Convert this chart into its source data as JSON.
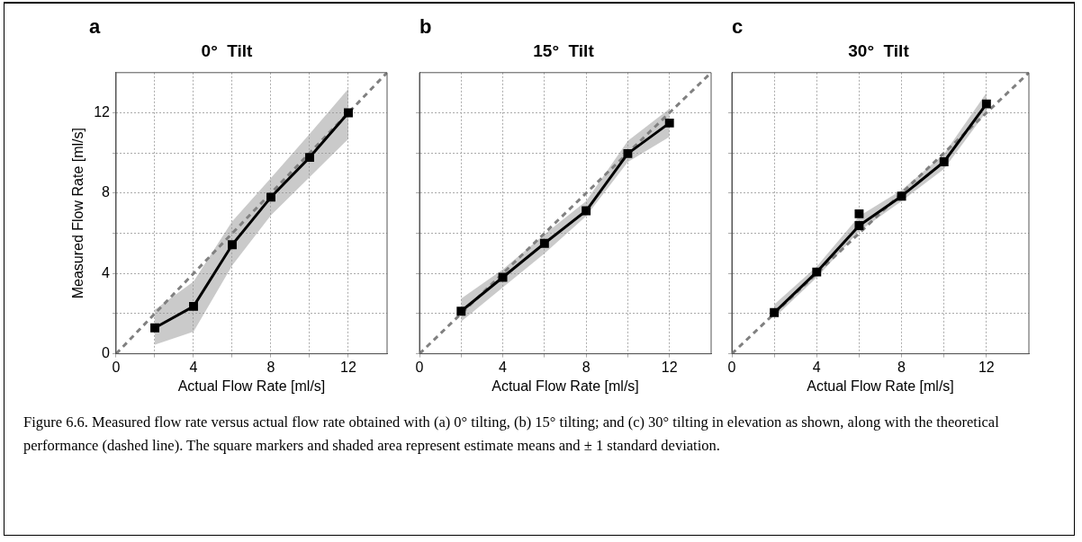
{
  "chart_data": [
    {
      "type": "line",
      "title": "0°  Tilt",
      "xlabel": "Actual Flow Rate [ml/s]",
      "ylabel": "Measured Flow Rate [ml/s]",
      "annotations": [
        "a",
        "Figure 6.6. Measured flow rate versus actual flow rate obtained with (a) 0° tilting, (b) 15° tilting; and (c) 30° tilting in elevation as shown, along with the theoretical performance (dashed line). The square markers and shaded area represent estimate means and ± 1 standard deviation."
      ],
      "xlim": [
        0,
        14
      ],
      "ylim": [
        0,
        14
      ],
      "xticks": [
        0,
        {
          "value": 2,
          "label": null
        },
        4,
        {
          "value": 6,
          "label": null
        },
        8,
        {
          "value": 10,
          "label": null
        },
        12
      ],
      "yticks": [
        0,
        {
          "value": 2,
          "label": null
        },
        4,
        {
          "value": 6,
          "label": null
        },
        8,
        {
          "value": 10,
          "label": null
        },
        12
      ],
      "grid": true,
      "legend": false,
      "series": [
        {
          "color": "#808080",
          "line_style": "dashed",
          "marker": "none",
          "x": [
            0,
            14
          ],
          "values": [
            0,
            14
          ]
        },
        {
          "color": "#000000",
          "marker": "square",
          "x": [
            2,
            4,
            6,
            8,
            10,
            12
          ],
          "values": [
            1.29,
            2.36,
            5.43,
            7.8,
            9.78,
            12.0
          ],
          "lower": [
            0.45,
            1.1,
            4.4,
            6.9,
            8.8,
            10.7
          ],
          "upper": [
            2.2,
            3.6,
            6.6,
            8.75,
            10.95,
            13.2
          ]
        }
      ]
    },
    {
      "type": "line",
      "title": "15°  Tilt",
      "xlabel": "Actual Flow Rate [ml/s]",
      "annotations": [
        "b"
      ],
      "tick_labels": "x",
      "xlim": [
        0,
        14
      ],
      "ylim": [
        0,
        14
      ],
      "xticks": [
        0,
        {
          "value": 2,
          "label": null
        },
        4,
        {
          "value": 6,
          "label": null
        },
        8,
        {
          "value": 10,
          "label": null
        },
        12
      ],
      "yticks": [
        0,
        {
          "value": 2,
          "label": null
        },
        4,
        {
          "value": 6,
          "label": null
        },
        8,
        {
          "value": 10,
          "label": null
        },
        12
      ],
      "grid": true,
      "legend": false,
      "series": [
        {
          "color": "#808080",
          "line_style": "dashed",
          "marker": "none",
          "x": [
            0,
            14
          ],
          "values": [
            0,
            14
          ]
        },
        {
          "color": "#000000",
          "marker": "square",
          "x": [
            2,
            4,
            6,
            8,
            10,
            12
          ],
          "values": [
            2.12,
            3.81,
            5.5,
            7.12,
            9.97,
            11.49
          ],
          "lower": [
            1.6,
            3.3,
            5.0,
            6.85,
            9.55,
            10.8
          ],
          "upper": [
            2.75,
            4.2,
            5.95,
            7.6,
            10.6,
            12.2
          ]
        }
      ]
    },
    {
      "type": "line",
      "title": "30°  Tilt",
      "xlabel": "Actual Flow Rate [ml/s]",
      "annotations": [
        "c"
      ],
      "tick_labels": "x",
      "xlim": [
        0,
        14
      ],
      "ylim": [
        0,
        14
      ],
      "xticks": [
        0,
        {
          "value": 2,
          "label": null
        },
        4,
        {
          "value": 6,
          "label": null
        },
        8,
        {
          "value": 10,
          "label": null
        },
        12
      ],
      "yticks": [
        0,
        {
          "value": 2,
          "label": null
        },
        4,
        {
          "value": 6,
          "label": null
        },
        8,
        {
          "value": 10,
          "label": null
        },
        12
      ],
      "grid": true,
      "legend": false,
      "series": [
        {
          "color": "#808080",
          "line_style": "dashed",
          "marker": "none",
          "x": [
            0,
            14
          ],
          "values": [
            0,
            14
          ]
        },
        {
          "color": "#000000",
          "marker": "square",
          "x": [
            2,
            4,
            6,
            8,
            10,
            12
          ],
          "values": [
            2.05,
            4.07,
            6.38,
            7.85,
            9.56,
            12.44
          ],
          "lower": [
            1.8,
            3.8,
            6.1,
            7.6,
            9.2,
            12.05
          ],
          "upper": [
            2.45,
            4.35,
            6.85,
            8.15,
            9.95,
            13.0
          ]
        },
        {
          "type": "scatter",
          "color": "#000000",
          "marker": "square",
          "x": [
            6
          ],
          "values": [
            6.97
          ]
        }
      ]
    }
  ]
}
